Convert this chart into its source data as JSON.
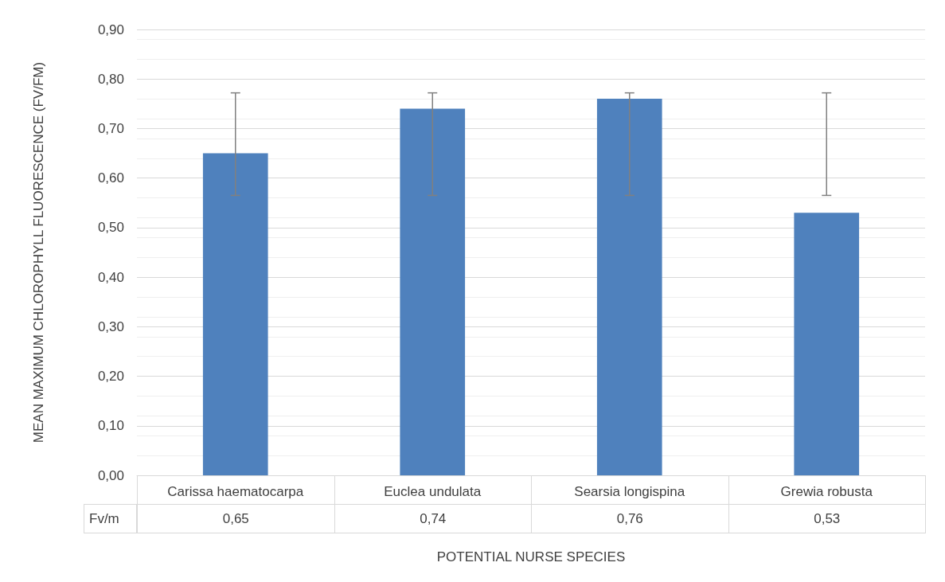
{
  "chart_data": {
    "type": "bar",
    "ylabel": "MEAN MAXIMUM CHLOROPHYLL FLUORESCENCE (FV/FM)",
    "xlabel": "POTENTIAL NURSE SPECIES",
    "categories": [
      "Carissa haematocarpa",
      "Euclea undulata",
      "Searsia longispina",
      "Grewia robusta"
    ],
    "series": [
      {
        "name": "Fv/m",
        "color": "#4f81bd",
        "values": [
          0.65,
          0.74,
          0.76,
          0.53
        ],
        "value_labels": [
          "0,65",
          "0,74",
          "0,76",
          "0,53"
        ],
        "errors": [
          [
            0.565,
            0.772
          ],
          [
            0.565,
            0.772
          ],
          [
            0.565,
            0.772
          ],
          [
            0.565,
            0.772
          ]
        ]
      }
    ],
    "ylim": [
      0,
      0.9
    ],
    "yticks": [
      {
        "value": 0,
        "label": "0,00"
      },
      {
        "value": 0.1,
        "label": "0,10"
      },
      {
        "value": 0.2,
        "label": "0,20"
      },
      {
        "value": 0.3,
        "label": "0,30"
      },
      {
        "value": 0.4,
        "label": "0,40"
      },
      {
        "value": 0.5,
        "label": "0,50"
      },
      {
        "value": 0.6,
        "label": "0,60"
      },
      {
        "value": 0.7,
        "label": "0,70"
      },
      {
        "value": 0.8,
        "label": "0,80"
      },
      {
        "value": 0.9,
        "label": "0,90"
      }
    ],
    "grid": true,
    "legend": false
  }
}
